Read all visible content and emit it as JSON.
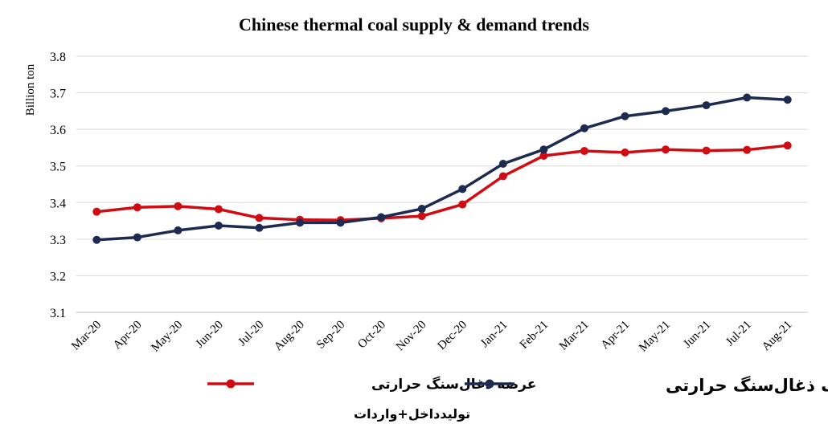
{
  "chart_data": {
    "type": "line",
    "title": "Chinese thermal coal supply & demand trends",
    "xlabel": "",
    "ylabel": "Billion ton",
    "ylim": [
      3.1,
      3.8
    ],
    "yticks": [
      "3.1",
      "3.2",
      "3.3",
      "3.4",
      "3.5",
      "3.6",
      "3.7",
      "3.8"
    ],
    "grid": "horizontal",
    "legend_position": "bottom",
    "categories": [
      "Mar-20",
      "Apr-20",
      "May-20",
      "Jun-20",
      "Jul-20",
      "Aug-20",
      "Sep-20",
      "Oct-20",
      "Nov-20",
      "Dec-20",
      "Jan-21",
      "Feb-21",
      "Mar-21",
      "Apr-21",
      "May-21",
      "Jun-21",
      "Jul-21",
      "Aug-21"
    ],
    "series": [
      {
        "name": "عرضه ذغال‌سنگ حرارتی",
        "subtitle": "تولیدداخل+واردات",
        "color": "#d00c12",
        "values": [
          3.375,
          3.387,
          3.39,
          3.382,
          3.358,
          3.353,
          3.352,
          3.357,
          3.363,
          3.395,
          3.472,
          3.528,
          3.541,
          3.537,
          3.545,
          3.542,
          3.544,
          3.556
        ]
      },
      {
        "name": "مصرف ذغال‌سنگ حرارتی",
        "color": "#1c2b4f",
        "values": [
          3.298,
          3.305,
          3.324,
          3.337,
          3.331,
          3.345,
          3.345,
          3.36,
          3.383,
          3.437,
          3.506,
          3.545,
          3.603,
          3.636,
          3.65,
          3.666,
          3.687,
          3.681
        ]
      }
    ]
  }
}
